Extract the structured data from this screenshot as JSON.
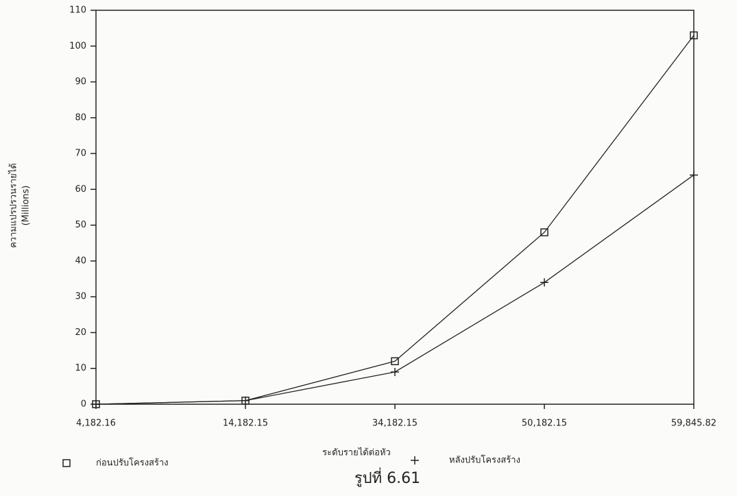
{
  "chart_data": {
    "type": "line",
    "y_label": "ความแปรปรวนรายได้",
    "y_unit": "(Millions)",
    "x_label": "ระดับรายได้ต่อหัว",
    "caption": "รูปที่ 6.61",
    "categories": [
      "4,182.16",
      "14,182.15",
      "34,182.15",
      "50,182.15",
      "59,845.82"
    ],
    "series": [
      {
        "name": "ก่อนปรับโครงสร้าง",
        "color": "#222222",
        "marker": "square",
        "values": [
          0,
          1,
          12,
          48,
          103
        ]
      },
      {
        "name": "หลังปรับโครงสร้าง",
        "color": "#222222",
        "marker": "plus",
        "values": [
          0,
          1,
          9,
          34,
          64
        ]
      }
    ],
    "ylim": [
      0,
      110
    ],
    "yticks": [
      0,
      10,
      20,
      30,
      40,
      50,
      60,
      70,
      80,
      90,
      100,
      110
    ],
    "grid": false
  }
}
